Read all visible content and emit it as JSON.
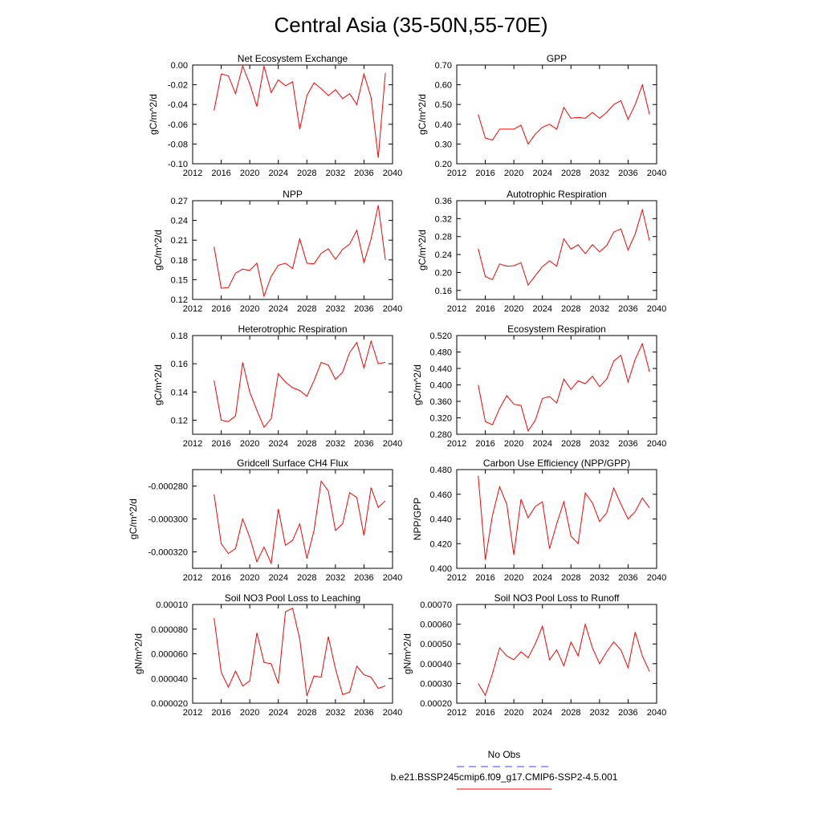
{
  "figure": {
    "title": "Central Asia (35-50N,55-70E)"
  },
  "legend": {
    "entries": [
      {
        "label": "No Obs",
        "color": "#4040ff",
        "dash": true
      },
      {
        "label": "b.e21.BSSP245cmip6.f09_g17.CMIP6-SSP2-4.5.001",
        "color": "#ff0000",
        "dash": false
      }
    ]
  },
  "chart_data": [
    {
      "type": "line",
      "title": "Net Ecosystem Exchange",
      "ylabel": "gC/m^2/d",
      "xlim": [
        2012,
        2040
      ],
      "xticks": [
        2012,
        2016,
        2020,
        2024,
        2028,
        2032,
        2036,
        2040
      ],
      "ylim": [
        -0.1,
        0.0
      ],
      "yticks": [
        0.0,
        -0.02,
        -0.04,
        -0.06,
        -0.08,
        -0.1
      ],
      "ytick_labels": [
        "0.00",
        "-0.02",
        "-0.04",
        "-0.06",
        "-0.08",
        "-0.10"
      ],
      "series": [
        {
          "color": "#ff0000",
          "x": [
            2015,
            2016,
            2017,
            2018,
            2019,
            2020,
            2021,
            2022,
            2023,
            2024,
            2025,
            2026,
            2027,
            2028,
            2029,
            2030,
            2031,
            2032,
            2033,
            2034,
            2035,
            2036,
            2037,
            2038,
            2039
          ],
          "values": [
            -0.046,
            -0.009,
            -0.011,
            -0.029,
            -0.001,
            -0.019,
            -0.042,
            -0.001,
            -0.028,
            -0.015,
            -0.021,
            -0.017,
            -0.065,
            -0.031,
            -0.018,
            -0.024,
            -0.031,
            -0.025,
            -0.034,
            -0.029,
            -0.04,
            -0.009,
            -0.033,
            -0.094,
            -0.008
          ]
        }
      ]
    },
    {
      "type": "line",
      "title": "GPP",
      "ylabel": "gC/m^2/d",
      "xlim": [
        2012,
        2040
      ],
      "xticks": [
        2012,
        2016,
        2020,
        2024,
        2028,
        2032,
        2036,
        2040
      ],
      "ylim": [
        0.2,
        0.7
      ],
      "yticks": [
        0.2,
        0.3,
        0.4,
        0.5,
        0.6,
        0.7
      ],
      "ytick_labels": [
        "0.20",
        "0.30",
        "0.40",
        "0.50",
        "0.60",
        "0.70"
      ],
      "series": [
        {
          "color": "#ff0000",
          "x": [
            2015,
            2016,
            2017,
            2018,
            2019,
            2020,
            2021,
            2022,
            2023,
            2024,
            2025,
            2026,
            2027,
            2028,
            2029,
            2030,
            2031,
            2032,
            2033,
            2034,
            2035,
            2036,
            2037,
            2038,
            2039
          ],
          "values": [
            0.45,
            0.33,
            0.32,
            0.375,
            0.375,
            0.375,
            0.395,
            0.3,
            0.35,
            0.385,
            0.4,
            0.375,
            0.485,
            0.43,
            0.435,
            0.43,
            0.46,
            0.43,
            0.46,
            0.5,
            0.52,
            0.425,
            0.5,
            0.6,
            0.45
          ]
        }
      ]
    },
    {
      "type": "line",
      "title": "NPP",
      "ylabel": "gC/m^2/d",
      "xlim": [
        2012,
        2040
      ],
      "xticks": [
        2012,
        2016,
        2020,
        2024,
        2028,
        2032,
        2036,
        2040
      ],
      "ylim": [
        0.12,
        0.27
      ],
      "yticks": [
        0.12,
        0.15,
        0.18,
        0.21,
        0.24,
        0.27
      ],
      "ytick_labels": [
        "0.12",
        "0.15",
        "0.18",
        "0.21",
        "0.24",
        "0.27"
      ],
      "series": [
        {
          "color": "#ff0000",
          "x": [
            2015,
            2016,
            2017,
            2018,
            2019,
            2020,
            2021,
            2022,
            2023,
            2024,
            2025,
            2026,
            2027,
            2028,
            2029,
            2030,
            2031,
            2032,
            2033,
            2034,
            2035,
            2036,
            2037,
            2038,
            2039
          ],
          "values": [
            0.2,
            0.137,
            0.138,
            0.16,
            0.166,
            0.164,
            0.175,
            0.125,
            0.155,
            0.172,
            0.175,
            0.167,
            0.212,
            0.175,
            0.174,
            0.19,
            0.197,
            0.181,
            0.196,
            0.204,
            0.225,
            0.176,
            0.212,
            0.263,
            0.18
          ]
        }
      ]
    },
    {
      "type": "line",
      "title": "Autotrophic Respiration",
      "ylabel": "gC/m^2/d",
      "xlim": [
        2012,
        2040
      ],
      "xticks": [
        2012,
        2016,
        2020,
        2024,
        2028,
        2032,
        2036,
        2040
      ],
      "ylim": [
        0.14,
        0.36
      ],
      "yticks": [
        0.16,
        0.2,
        0.24,
        0.28,
        0.32,
        0.36
      ],
      "ytick_labels": [
        "0.16",
        "0.20",
        "0.24",
        "0.28",
        "0.32",
        "0.36"
      ],
      "series": [
        {
          "color": "#ff0000",
          "x": [
            2015,
            2016,
            2017,
            2018,
            2019,
            2020,
            2021,
            2022,
            2023,
            2024,
            2025,
            2026,
            2027,
            2028,
            2029,
            2030,
            2031,
            2032,
            2033,
            2034,
            2035,
            2036,
            2037,
            2038,
            2039
          ],
          "values": [
            0.253,
            0.191,
            0.184,
            0.219,
            0.214,
            0.215,
            0.222,
            0.172,
            0.193,
            0.213,
            0.226,
            0.214,
            0.275,
            0.252,
            0.262,
            0.242,
            0.262,
            0.246,
            0.26,
            0.29,
            0.297,
            0.25,
            0.286,
            0.34,
            0.271
          ]
        }
      ]
    },
    {
      "type": "line",
      "title": "Heterotrophic Respiration",
      "ylabel": "gC/m^2/d",
      "xlim": [
        2012,
        2040
      ],
      "xticks": [
        2012,
        2016,
        2020,
        2024,
        2028,
        2032,
        2036,
        2040
      ],
      "ylim": [
        0.11,
        0.18
      ],
      "yticks": [
        0.12,
        0.14,
        0.16,
        0.18
      ],
      "ytick_labels": [
        "0.12",
        "0.14",
        "0.16",
        "0.18"
      ],
      "series": [
        {
          "color": "#ff0000",
          "x": [
            2015,
            2016,
            2017,
            2018,
            2019,
            2020,
            2021,
            2022,
            2023,
            2024,
            2025,
            2026,
            2027,
            2028,
            2029,
            2030,
            2031,
            2032,
            2033,
            2034,
            2035,
            2036,
            2037,
            2038,
            2039
          ],
          "values": [
            0.148,
            0.12,
            0.119,
            0.123,
            0.161,
            0.14,
            0.127,
            0.115,
            0.121,
            0.153,
            0.147,
            0.143,
            0.141,
            0.137,
            0.148,
            0.161,
            0.159,
            0.149,
            0.154,
            0.168,
            0.175,
            0.157,
            0.176,
            0.16,
            0.161
          ]
        }
      ]
    },
    {
      "type": "line",
      "title": "Ecosystem Respiration",
      "ylabel": "gC/m^2/d",
      "xlim": [
        2012,
        2040
      ],
      "xticks": [
        2012,
        2016,
        2020,
        2024,
        2028,
        2032,
        2036,
        2040
      ],
      "ylim": [
        0.28,
        0.52
      ],
      "yticks": [
        0.28,
        0.32,
        0.36,
        0.4,
        0.44,
        0.48,
        0.52
      ],
      "ytick_labels": [
        "0.280",
        "0.320",
        "0.360",
        "0.400",
        "0.440",
        "0.480",
        "0.520"
      ],
      "series": [
        {
          "color": "#ff0000",
          "x": [
            2015,
            2016,
            2017,
            2018,
            2019,
            2020,
            2021,
            2022,
            2023,
            2024,
            2025,
            2026,
            2027,
            2028,
            2029,
            2030,
            2031,
            2032,
            2033,
            2034,
            2035,
            2036,
            2037,
            2038,
            2039
          ],
          "values": [
            0.4,
            0.311,
            0.303,
            0.343,
            0.374,
            0.353,
            0.35,
            0.288,
            0.314,
            0.367,
            0.372,
            0.356,
            0.414,
            0.389,
            0.41,
            0.403,
            0.421,
            0.396,
            0.414,
            0.458,
            0.472,
            0.407,
            0.462,
            0.5,
            0.432
          ]
        }
      ]
    },
    {
      "type": "line",
      "title": "Gridcell Surface CH4 Flux",
      "ylabel": "gC/m^2/d",
      "xlim": [
        2012,
        2040
      ],
      "xticks": [
        2012,
        2016,
        2020,
        2024,
        2028,
        2032,
        2036,
        2040
      ],
      "ylim": [
        -0.00033,
        -0.00027
      ],
      "yticks": [
        -0.00032,
        -0.0003,
        -0.00028
      ],
      "ytick_labels": [
        "-0.000320",
        "-0.000300",
        "-0.000280"
      ],
      "series": [
        {
          "color": "#ff0000",
          "x": [
            2015,
            2016,
            2017,
            2018,
            2019,
            2020,
            2021,
            2022,
            2023,
            2024,
            2025,
            2026,
            2027,
            2028,
            2029,
            2030,
            2031,
            2032,
            2033,
            2034,
            2035,
            2036,
            2037,
            2038,
            2039
          ],
          "values": [
            -0.000285,
            -0.000315,
            -0.000321,
            -0.000318,
            -0.0003,
            -0.000311,
            -0.000326,
            -0.000317,
            -0.000327,
            -0.000294,
            -0.000316,
            -0.000313,
            -0.000303,
            -0.000324,
            -0.000307,
            -0.000277,
            -0.000283,
            -0.000307,
            -0.000303,
            -0.000284,
            -0.000287,
            -0.00031,
            -0.000281,
            -0.000293,
            -0.000289
          ]
        }
      ]
    },
    {
      "type": "line",
      "title": "Carbon Use Efficiency (NPP/GPP)",
      "ylabel": "NPP/GPP",
      "xlim": [
        2012,
        2040
      ],
      "xticks": [
        2012,
        2016,
        2020,
        2024,
        2028,
        2032,
        2036,
        2040
      ],
      "ylim": [
        0.4,
        0.48
      ],
      "yticks": [
        0.4,
        0.42,
        0.44,
        0.46,
        0.48
      ],
      "ytick_labels": [
        "0.400",
        "0.420",
        "0.440",
        "0.460",
        "0.480"
      ],
      "series": [
        {
          "color": "#ff0000",
          "x": [
            2015,
            2016,
            2017,
            2018,
            2019,
            2020,
            2021,
            2022,
            2023,
            2024,
            2025,
            2026,
            2027,
            2028,
            2029,
            2030,
            2031,
            2032,
            2033,
            2034,
            2035,
            2036,
            2037,
            2038,
            2039
          ],
          "values": [
            0.475,
            0.407,
            0.443,
            0.466,
            0.452,
            0.411,
            0.456,
            0.441,
            0.45,
            0.454,
            0.416,
            0.436,
            0.454,
            0.426,
            0.42,
            0.461,
            0.453,
            0.438,
            0.445,
            0.465,
            0.452,
            0.44,
            0.446,
            0.457,
            0.449
          ]
        }
      ]
    },
    {
      "type": "line",
      "title": "Soil NO3 Pool Loss to Leaching",
      "ylabel": "gN/m^2/d",
      "xlim": [
        2012,
        2040
      ],
      "xticks": [
        2012,
        2016,
        2020,
        2024,
        2028,
        2032,
        2036,
        2040
      ],
      "ylim": [
        2e-05,
        0.0001
      ],
      "yticks": [
        2e-05,
        4e-05,
        6e-05,
        8e-05,
        0.0001
      ],
      "ytick_labels": [
        "0.000020",
        "0.000040",
        "0.000060",
        "0.000080",
        "0.00010"
      ],
      "series": [
        {
          "color": "#ff0000",
          "x": [
            2015,
            2016,
            2017,
            2018,
            2019,
            2020,
            2021,
            2022,
            2023,
            2024,
            2025,
            2026,
            2027,
            2028,
            2029,
            2030,
            2031,
            2032,
            2033,
            2034,
            2035,
            2036,
            2037,
            2038,
            2039
          ],
          "values": [
            8.9e-05,
            4.5e-05,
            3.3e-05,
            4.6e-05,
            3.4e-05,
            3.8e-05,
            7.7e-05,
            5.3e-05,
            5.2e-05,
            3.6e-05,
            9.4e-05,
            9.7e-05,
            7.2e-05,
            2.6e-05,
            4.2e-05,
            4.1e-05,
            7.4e-05,
            4.8e-05,
            2.7e-05,
            2.9e-05,
            5e-05,
            4.3e-05,
            4.1e-05,
            3.2e-05,
            3.4e-05
          ]
        }
      ]
    },
    {
      "type": "line",
      "title": "Soil NO3 Pool Loss to Runoff",
      "ylabel": "gN/m^2/d",
      "xlim": [
        2012,
        2040
      ],
      "xticks": [
        2012,
        2016,
        2020,
        2024,
        2028,
        2032,
        2036,
        2040
      ],
      "ylim": [
        0.0002,
        0.0007
      ],
      "yticks": [
        0.0002,
        0.0003,
        0.0004,
        0.0005,
        0.0006,
        0.0007
      ],
      "ytick_labels": [
        "0.00020",
        "0.00030",
        "0.00040",
        "0.00050",
        "0.00060",
        "0.00070"
      ],
      "series": [
        {
          "color": "#ff0000",
          "x": [
            2015,
            2016,
            2017,
            2018,
            2019,
            2020,
            2021,
            2022,
            2023,
            2024,
            2025,
            2026,
            2027,
            2028,
            2029,
            2030,
            2031,
            2032,
            2033,
            2034,
            2035,
            2036,
            2037,
            2038,
            2039
          ],
          "values": [
            0.0003,
            0.00024,
            0.00035,
            0.00048,
            0.00044,
            0.00042,
            0.00046,
            0.00043,
            0.0005,
            0.00059,
            0.00042,
            0.00047,
            0.00039,
            0.00051,
            0.00044,
            0.0006,
            0.00048,
            0.0004,
            0.00046,
            0.00051,
            0.00047,
            0.00038,
            0.00056,
            0.00044,
            0.00036
          ]
        }
      ]
    }
  ]
}
